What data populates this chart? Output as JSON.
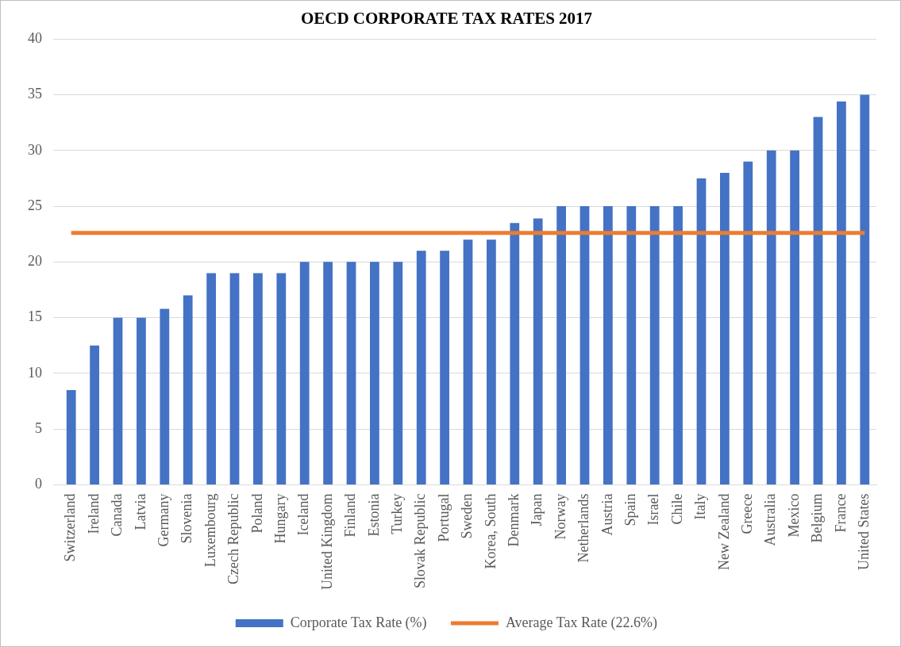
{
  "chart_data": {
    "type": "bar",
    "title": "OECD CORPORATE TAX RATES 2017",
    "categories": [
      "Switzerland",
      "Ireland",
      "Canada",
      "Latvia",
      "Germany",
      "Slovenia",
      "Luxembourg",
      "Czech Republic",
      "Poland",
      "Hungary",
      "Iceland",
      "United Kingdom",
      "Finland",
      "Estonia",
      "Turkey",
      "Slovak Republic",
      "Portugal",
      "Sweden",
      "Korea, South",
      "Denmark",
      "Japan",
      "Norway",
      "Netherlands",
      "Austria",
      "Spain",
      "Israel",
      "Chile",
      "Italy",
      "New Zealand",
      "Greece",
      "Australia",
      "Mexico",
      "Belgium",
      "France",
      "United States"
    ],
    "series": [
      {
        "name": "Corporate Tax Rate (%)",
        "color": "#4472c4",
        "values": [
          8.5,
          12.5,
          15,
          15,
          15.8,
          17,
          19,
          19,
          19,
          19,
          20,
          20,
          20,
          20,
          20,
          21,
          21,
          22,
          22,
          23.5,
          23.9,
          25,
          25,
          25,
          25,
          25,
          25,
          27.5,
          28,
          29,
          30,
          30,
          33,
          34.4,
          35
        ]
      },
      {
        "name": "Average Tax Rate (22.6%)",
        "type": "line",
        "color": "#ed7d31",
        "values": [
          22.6,
          22.6,
          22.6,
          22.6,
          22.6,
          22.6,
          22.6,
          22.6,
          22.6,
          22.6,
          22.6,
          22.6,
          22.6,
          22.6,
          22.6,
          22.6,
          22.6,
          22.6,
          22.6,
          22.6,
          22.6,
          22.6,
          22.6,
          22.6,
          22.6,
          22.6,
          22.6,
          22.6,
          22.6,
          22.6,
          22.6,
          22.6,
          22.6,
          22.6,
          22.6
        ]
      }
    ],
    "ylim": [
      0,
      40
    ],
    "yticks": [
      0,
      5,
      10,
      15,
      20,
      25,
      30,
      35,
      40
    ],
    "grid": "y",
    "legend": "bottom",
    "marker": "none"
  }
}
